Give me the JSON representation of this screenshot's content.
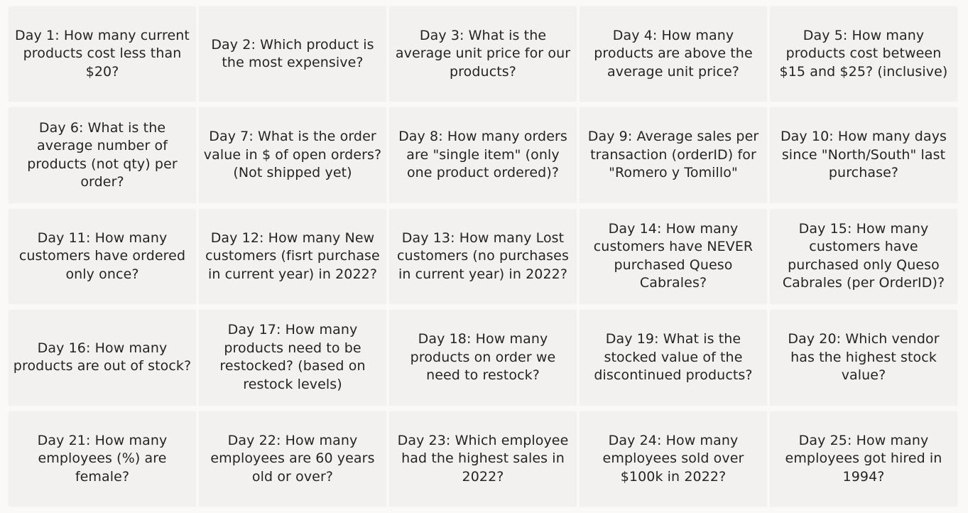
{
  "cards": [
    "Day 1: How many current products cost less than $20?",
    "Day 2: Which product is the most expensive?",
    "Day 3: What is the average unit price for our products?",
    "Day 4: How many products are above the average unit price?",
    "Day 5: How many products cost between $15 and $25? (inclusive)",
    "Day 6: What is the average number of products (not qty) per order?",
    "Day 7: What is the order value in $ of open orders? (Not shipped yet)",
    "Day 8: How many orders are \"single item\" (only one product ordered)?",
    "Day 9: Average sales per transaction (orderID) for \"Romero y Tomillo\"",
    "Day 10: How many days since \"North/South\" last purchase?",
    "Day 11: How many customers have ordered only once?",
    "Day 12: How many New customers (fisrt purchase in current year) in 2022?",
    "Day 13: How many Lost customers (no purchases in current year) in 2022?",
    "Day 14: How many customers have NEVER purchased Queso Cabrales?",
    "Day 15: How many customers have purchased only Queso Cabrales (per OrderID)?",
    "Day 16: How many products are out of stock?",
    "Day 17: How many products need to be restocked? (based on restock levels)",
    "Day 18: How many products on order we need to restock?",
    "Day 19: What is the stocked value of the discontinued products?",
    "Day 20: Which vendor has the highest stock value?",
    "Day 21: How many employees (%) are female?",
    "Day 22: How many employees are 60 years old or over?",
    "Day 23: Which employee had the highest sales in 2022?",
    "Day 24: How many employees sold over $100k in 2022?",
    "Day 25: How many employees got hired in 1994?"
  ]
}
